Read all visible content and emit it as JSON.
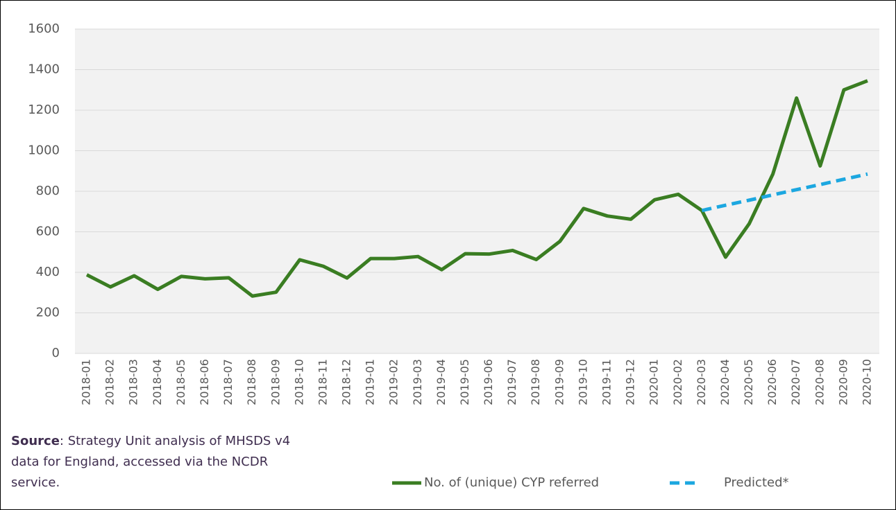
{
  "chart_data": {
    "type": "line",
    "categories": [
      "2018-01",
      "2018-02",
      "2018-03",
      "2018-04",
      "2018-05",
      "2018-06",
      "2018-07",
      "2018-08",
      "2018-09",
      "2018-10",
      "2018-11",
      "2018-12",
      "2019-01",
      "2019-02",
      "2019-03",
      "2019-04",
      "2019-05",
      "2019-06",
      "2019-07",
      "2019-08",
      "2019-09",
      "2019-10",
      "2019-11",
      "2019-12",
      "2020-01",
      "2020-02",
      "2020-03",
      "2020-04",
      "2020-05",
      "2020-06",
      "2020-07",
      "2020-08",
      "2020-09",
      "2020-10"
    ],
    "series": [
      {
        "name": "No. of (unique) CYP referred",
        "color": "#3a7d22",
        "dashed": false,
        "values": [
          388,
          328,
          383,
          316,
          380,
          368,
          373,
          283,
          302,
          462,
          430,
          372,
          468,
          468,
          478,
          413,
          492,
          490,
          508,
          463,
          553,
          715,
          678,
          662,
          758,
          785,
          705,
          475,
          640,
          885,
          1260,
          925,
          1300,
          1345
        ]
      },
      {
        "name": "Predicted*",
        "color": "#1ca7e0",
        "dashed": true,
        "values": [
          null,
          null,
          null,
          null,
          null,
          null,
          null,
          null,
          null,
          null,
          null,
          null,
          null,
          null,
          null,
          null,
          null,
          null,
          null,
          null,
          null,
          null,
          null,
          null,
          null,
          null,
          705,
          731,
          756,
          782,
          808,
          833,
          859,
          885
        ]
      }
    ],
    "ylim": [
      0,
      1600
    ],
    "yticks": [
      0,
      200,
      400,
      600,
      800,
      1000,
      1200,
      1400,
      1600
    ],
    "grid": true,
    "legend": "bottom",
    "source_label": "Source",
    "source_text": ": Strategy Unit analysis of MHSDS v4 data for England, accessed via the NCDR service."
  }
}
